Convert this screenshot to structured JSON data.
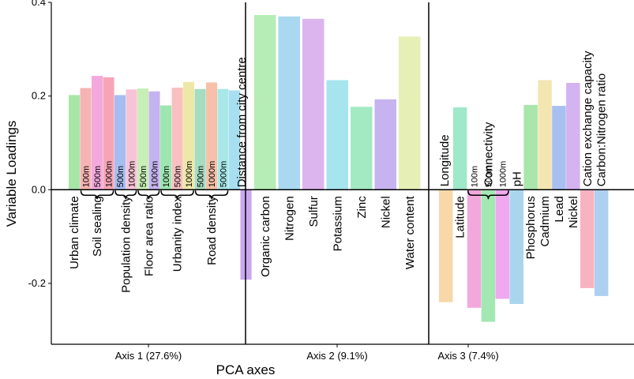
{
  "chart_data": {
    "type": "bar",
    "title": "",
    "xlabel": "PCA axes",
    "ylabel": "Variable Loadings",
    "ylim": [
      -0.33,
      0.4
    ],
    "yticks": [
      {
        "value": 0.4,
        "label": "0.4"
      },
      {
        "value": 0.2,
        "label": "0.2"
      },
      {
        "value": 0.0,
        "label": "0.0"
      },
      {
        "value": -0.2,
        "label": "-0.2"
      }
    ],
    "grid": false,
    "legend": "none",
    "panels": [
      {
        "label": "Axis 1 (27.6%)",
        "bars": [
          {
            "value": 0.202,
            "color": "#a8e6a8"
          },
          {
            "value": 0.217,
            "color": "#f6b3b3"
          },
          {
            "value": 0.243,
            "color": "#f3a9dd"
          },
          {
            "value": 0.24,
            "color": "#f7a5b6"
          },
          {
            "value": 0.202,
            "color": "#a5bdf0"
          },
          {
            "value": 0.214,
            "color": "#f7c3d6"
          },
          {
            "value": 0.216,
            "color": "#c7efb6"
          },
          {
            "value": 0.21,
            "color": "#c5b3f0"
          },
          {
            "value": 0.18,
            "color": "#9ee6b0"
          },
          {
            "value": 0.218,
            "color": "#f8c0c0"
          },
          {
            "value": 0.23,
            "color": "#eee8a8"
          },
          {
            "value": 0.215,
            "color": "#a6dcc0"
          },
          {
            "value": 0.229,
            "color": "#f7c0a8"
          },
          {
            "value": 0.215,
            "color": "#a8e8e8"
          },
          {
            "value": 0.212,
            "color": "#a8dff0"
          },
          {
            "value": -0.192,
            "color": "#c9a8ee"
          }
        ],
        "labels": [
          {
            "text": "Urban climate",
            "anchor": 0
          },
          {
            "text": "Soil sealing",
            "anchor": 2
          },
          {
            "text": "Population density",
            "anchor": 4.5
          },
          {
            "text": "Floor area ratio",
            "anchor": 6.5
          },
          {
            "text": "Urbanity index",
            "anchor": 9
          },
          {
            "text": "Road density",
            "anchor": 12
          },
          {
            "text": "Distance from city centre",
            "anchor": 14.6
          }
        ],
        "scales": [
          {
            "text": "100m",
            "bar": 1
          },
          {
            "text": "500m",
            "bar": 2
          },
          {
            "text": "1000m",
            "bar": 3
          },
          {
            "text": "500m",
            "bar": 4
          },
          {
            "text": "1000m",
            "bar": 5
          },
          {
            "text": "500m",
            "bar": 6
          },
          {
            "text": "1000m",
            "bar": 7
          },
          {
            "text": "100m",
            "bar": 8
          },
          {
            "text": "500m",
            "bar": 9
          },
          {
            "text": "1000m",
            "bar": 10
          },
          {
            "text": "500m",
            "bar": 11
          },
          {
            "text": "1000m",
            "bar": 12
          },
          {
            "text": "5000m",
            "bar": 13
          }
        ],
        "braces": [
          [
            1,
            3
          ],
          [
            4,
            5
          ],
          [
            6,
            7
          ],
          [
            8,
            10
          ],
          [
            11,
            13
          ]
        ]
      },
      {
        "label": "Axis 2 (9.1%)",
        "bars": [
          {
            "value": 0.373,
            "color": "#b6edb6"
          },
          {
            "value": 0.37,
            "color": "#a9d8f0"
          },
          {
            "value": 0.365,
            "color": "#dcb4ee"
          },
          {
            "value": 0.234,
            "color": "#a6e4ee"
          },
          {
            "value": 0.177,
            "color": "#a3eac3"
          },
          {
            "value": 0.193,
            "color": "#c6b3f0"
          },
          {
            "value": 0.327,
            "color": "#e6f0b6"
          }
        ],
        "labels": [
          {
            "text": "Organic carbon",
            "anchor": 0
          },
          {
            "text": "Nitrogen",
            "anchor": 1
          },
          {
            "text": "Sulfur",
            "anchor": 2
          },
          {
            "text": "Potassium",
            "anchor": 3
          },
          {
            "text": "Zinc",
            "anchor": 4
          },
          {
            "text": "Nickel",
            "anchor": 5
          },
          {
            "text": "Water content",
            "anchor": 6
          }
        ],
        "scales": [],
        "braces": []
      },
      {
        "label": "Axis 3 (7.4%)",
        "bars": [
          {
            "value": -0.24,
            "color": "#f8d8a8"
          },
          {
            "value": 0.176,
            "color": "#9fe8c9"
          },
          {
            "value": -0.252,
            "color": "#f3a8dc"
          },
          {
            "value": -0.282,
            "color": "#a3e8b2"
          },
          {
            "value": -0.233,
            "color": "#f0a8f0"
          },
          {
            "value": -0.244,
            "color": "#a9d6ee"
          },
          {
            "value": 0.181,
            "color": "#a8e6ac"
          },
          {
            "value": 0.234,
            "color": "#f3e6b0"
          },
          {
            "value": 0.179,
            "color": "#a8bff0"
          },
          {
            "value": 0.228,
            "color": "#d3b3f0"
          },
          {
            "value": -0.21,
            "color": "#f8b3c2"
          },
          {
            "value": -0.227,
            "color": "#aed0f0"
          }
        ],
        "labels": [
          {
            "text": "Longitude",
            "anchor": -0.1,
            "side": "top"
          },
          {
            "text": "Latitude",
            "anchor": 1,
            "side": "bottom"
          },
          {
            "text": "Connectivity",
            "anchor": 3,
            "side": "top"
          },
          {
            "text": "pH",
            "anchor": 5,
            "side": "top"
          },
          {
            "text": "Phosphorus",
            "anchor": 6,
            "side": "bottom"
          },
          {
            "text": "Cadmium",
            "anchor": 7,
            "side": "bottom"
          },
          {
            "text": "Lead",
            "anchor": 8,
            "side": "bottom"
          },
          {
            "text": "Nickel",
            "anchor": 9,
            "side": "bottom"
          },
          {
            "text": "Cation exchange capacity",
            "anchor": 10,
            "side": "top"
          },
          {
            "text": "Carbon:Nitrogen ratio",
            "anchor": 11,
            "side": "top"
          }
        ],
        "scales": [
          {
            "text": "100m",
            "bar": 2
          },
          {
            "text": "500m",
            "bar": 3
          },
          {
            "text": "1000m",
            "bar": 4
          }
        ],
        "braces": [
          [
            2,
            4
          ]
        ]
      }
    ]
  }
}
